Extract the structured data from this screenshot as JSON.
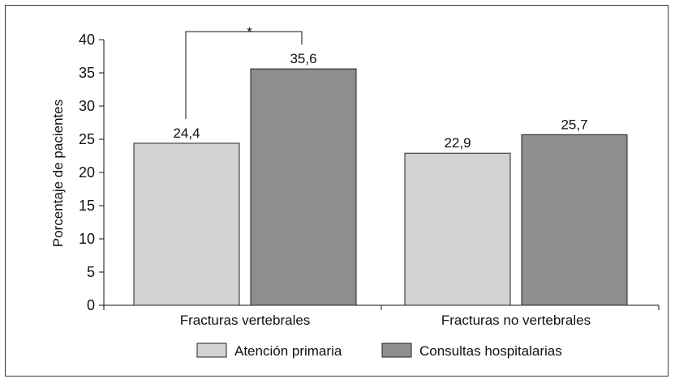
{
  "chart_data": {
    "type": "bar",
    "categories": [
      "Fracturas vertebrales",
      "Fracturas no vertebrales"
    ],
    "series": [
      {
        "name": "Atención primaria",
        "values": [
          24.4,
          22.9
        ],
        "value_labels": [
          "24,4",
          "22,9"
        ],
        "color": "#d2d2d2"
      },
      {
        "name": "Consultas hospitalarias",
        "values": [
          35.6,
          25.7
        ],
        "value_labels": [
          "35,6",
          "25,7"
        ],
        "color": "#8e8e8e"
      }
    ],
    "ylabel": "Porcentaje de pacientes",
    "xlabel": "",
    "ylim": [
      0,
      40
    ],
    "yticks": [
      "0",
      "5",
      "10",
      "15",
      "20",
      "25",
      "30",
      "35",
      "40"
    ],
    "grid": false,
    "legend_position": "bottom",
    "annotation": {
      "text": "*",
      "between": [
        "Atención primaria",
        "Consultas hospitalarias"
      ],
      "category": "Fracturas vertebrales"
    }
  }
}
